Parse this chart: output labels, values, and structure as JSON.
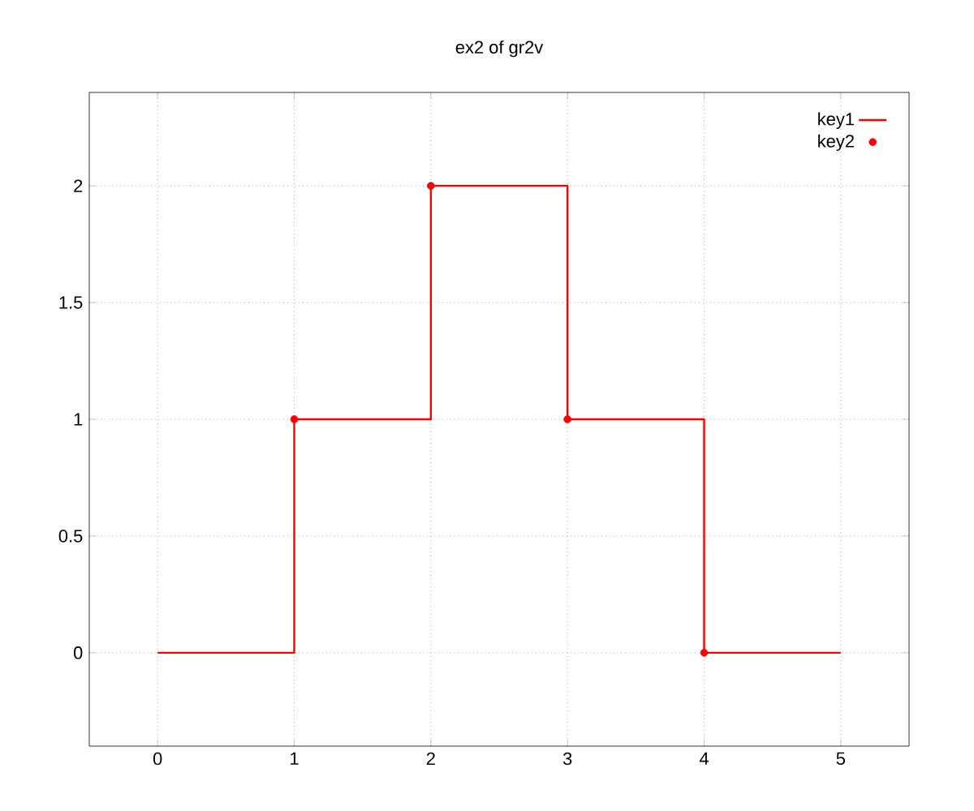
{
  "chart_data": {
    "type": "step",
    "title": "ex2 of gr2v",
    "xlim": [
      -0.5,
      5.5
    ],
    "ylim": [
      -0.4,
      2.4
    ],
    "xticks": [
      0,
      1,
      2,
      3,
      4,
      5
    ],
    "yticks": [
      0,
      0.5,
      1,
      1.5,
      2
    ],
    "grid": true,
    "legend": "top right",
    "series": [
      {
        "name": "key1",
        "color": "#ff0000",
        "x": [
          0,
          1,
          2,
          3,
          4,
          5
        ],
        "values": [
          0,
          1,
          2,
          1,
          0,
          0
        ],
        "marker": "none"
      },
      {
        "name": "key2",
        "type": "scatter",
        "color": "#ff0000",
        "x": [
          1,
          2,
          3,
          4
        ],
        "values": [
          1,
          2,
          1,
          0
        ],
        "marker": "circle"
      }
    ]
  }
}
